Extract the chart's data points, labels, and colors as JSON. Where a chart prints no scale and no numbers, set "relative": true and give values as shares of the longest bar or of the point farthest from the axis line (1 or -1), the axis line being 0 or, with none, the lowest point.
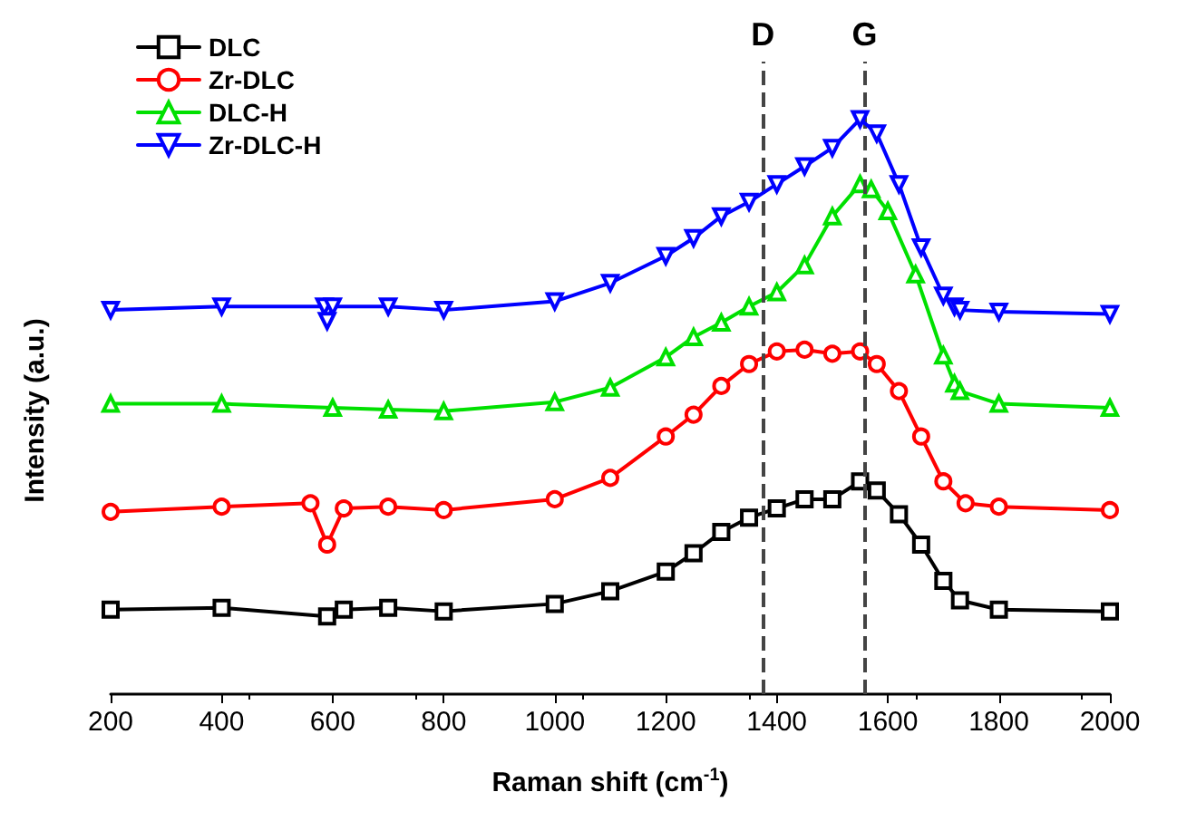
{
  "chart_data": {
    "type": "line",
    "relative": true,
    "xlabel": "Raman shift (cm$^{-1}$)",
    "ylabel": "Intensity (a.u.)",
    "xlim": [
      200,
      2000
    ],
    "xticks": [
      200,
      400,
      600,
      800,
      1000,
      1200,
      1400,
      1600,
      1800,
      2000
    ],
    "grid": false,
    "legend": "top left",
    "line_style": "solid",
    "ref_lines": [
      {
        "axis": "x",
        "value": 1375,
        "label": "D",
        "color": "#444444",
        "line_style": "dashed"
      },
      {
        "axis": "x",
        "value": 1558,
        "label": "G",
        "color": "#444444",
        "line_style": "dashed"
      }
    ],
    "series": [
      {
        "name": "DLC",
        "color": "#000000",
        "marker": "square",
        "x": [
          200,
          400,
          590,
          620,
          700,
          800,
          1000,
          1100,
          1200,
          1250,
          1300,
          1350,
          1400,
          1450,
          1500,
          1550,
          1580,
          1620,
          1660,
          1700,
          1730,
          1800,
          2000
        ],
        "values": [
          0.147,
          0.15,
          0.135,
          0.147,
          0.15,
          0.144,
          0.157,
          0.179,
          0.213,
          0.245,
          0.282,
          0.307,
          0.323,
          0.339,
          0.339,
          0.37,
          0.354,
          0.313,
          0.26,
          0.197,
          0.163,
          0.147,
          0.144
        ]
      },
      {
        "name": "Zr-DLC",
        "color": "#ff0000",
        "marker": "circle",
        "x": [
          200,
          400,
          560,
          590,
          620,
          700,
          800,
          1000,
          1100,
          1200,
          1250,
          1300,
          1350,
          1400,
          1450,
          1500,
          1550,
          1580,
          1620,
          1660,
          1700,
          1740,
          1800,
          2000
        ],
        "values": [
          0.317,
          0.326,
          0.332,
          0.26,
          0.323,
          0.326,
          0.32,
          0.339,
          0.376,
          0.448,
          0.486,
          0.536,
          0.574,
          0.596,
          0.599,
          0.592,
          0.596,
          0.574,
          0.527,
          0.448,
          0.37,
          0.332,
          0.326,
          0.32
        ]
      },
      {
        "name": "DLC-H",
        "color": "#00e000",
        "marker": "triangle",
        "x": [
          200,
          400,
          600,
          700,
          800,
          1000,
          1100,
          1200,
          1250,
          1300,
          1350,
          1400,
          1450,
          1500,
          1550,
          1570,
          1600,
          1650,
          1700,
          1720,
          1730,
          1800,
          2000
        ],
        "values": [
          0.505,
          0.505,
          0.498,
          0.495,
          0.492,
          0.508,
          0.533,
          0.586,
          0.621,
          0.646,
          0.674,
          0.699,
          0.746,
          0.831,
          0.887,
          0.878,
          0.84,
          0.73,
          0.589,
          0.54,
          0.527,
          0.505,
          0.498
        ]
      },
      {
        "name": "Zr-DLC-H",
        "color": "#0000ff",
        "marker": "triangle-down",
        "x": [
          200,
          400,
          585,
          590,
          600,
          700,
          800,
          1000,
          1100,
          1200,
          1250,
          1300,
          1350,
          1400,
          1450,
          1500,
          1550,
          1580,
          1620,
          1660,
          1700,
          1720,
          1730,
          1800,
          2000
        ],
        "values": [
          0.668,
          0.674,
          0.674,
          0.649,
          0.674,
          0.674,
          0.668,
          0.683,
          0.715,
          0.762,
          0.793,
          0.831,
          0.856,
          0.887,
          0.918,
          0.95,
          1,
          0.975,
          0.887,
          0.777,
          0.693,
          0.674,
          0.668,
          0.665,
          0.661
        ]
      }
    ]
  }
}
